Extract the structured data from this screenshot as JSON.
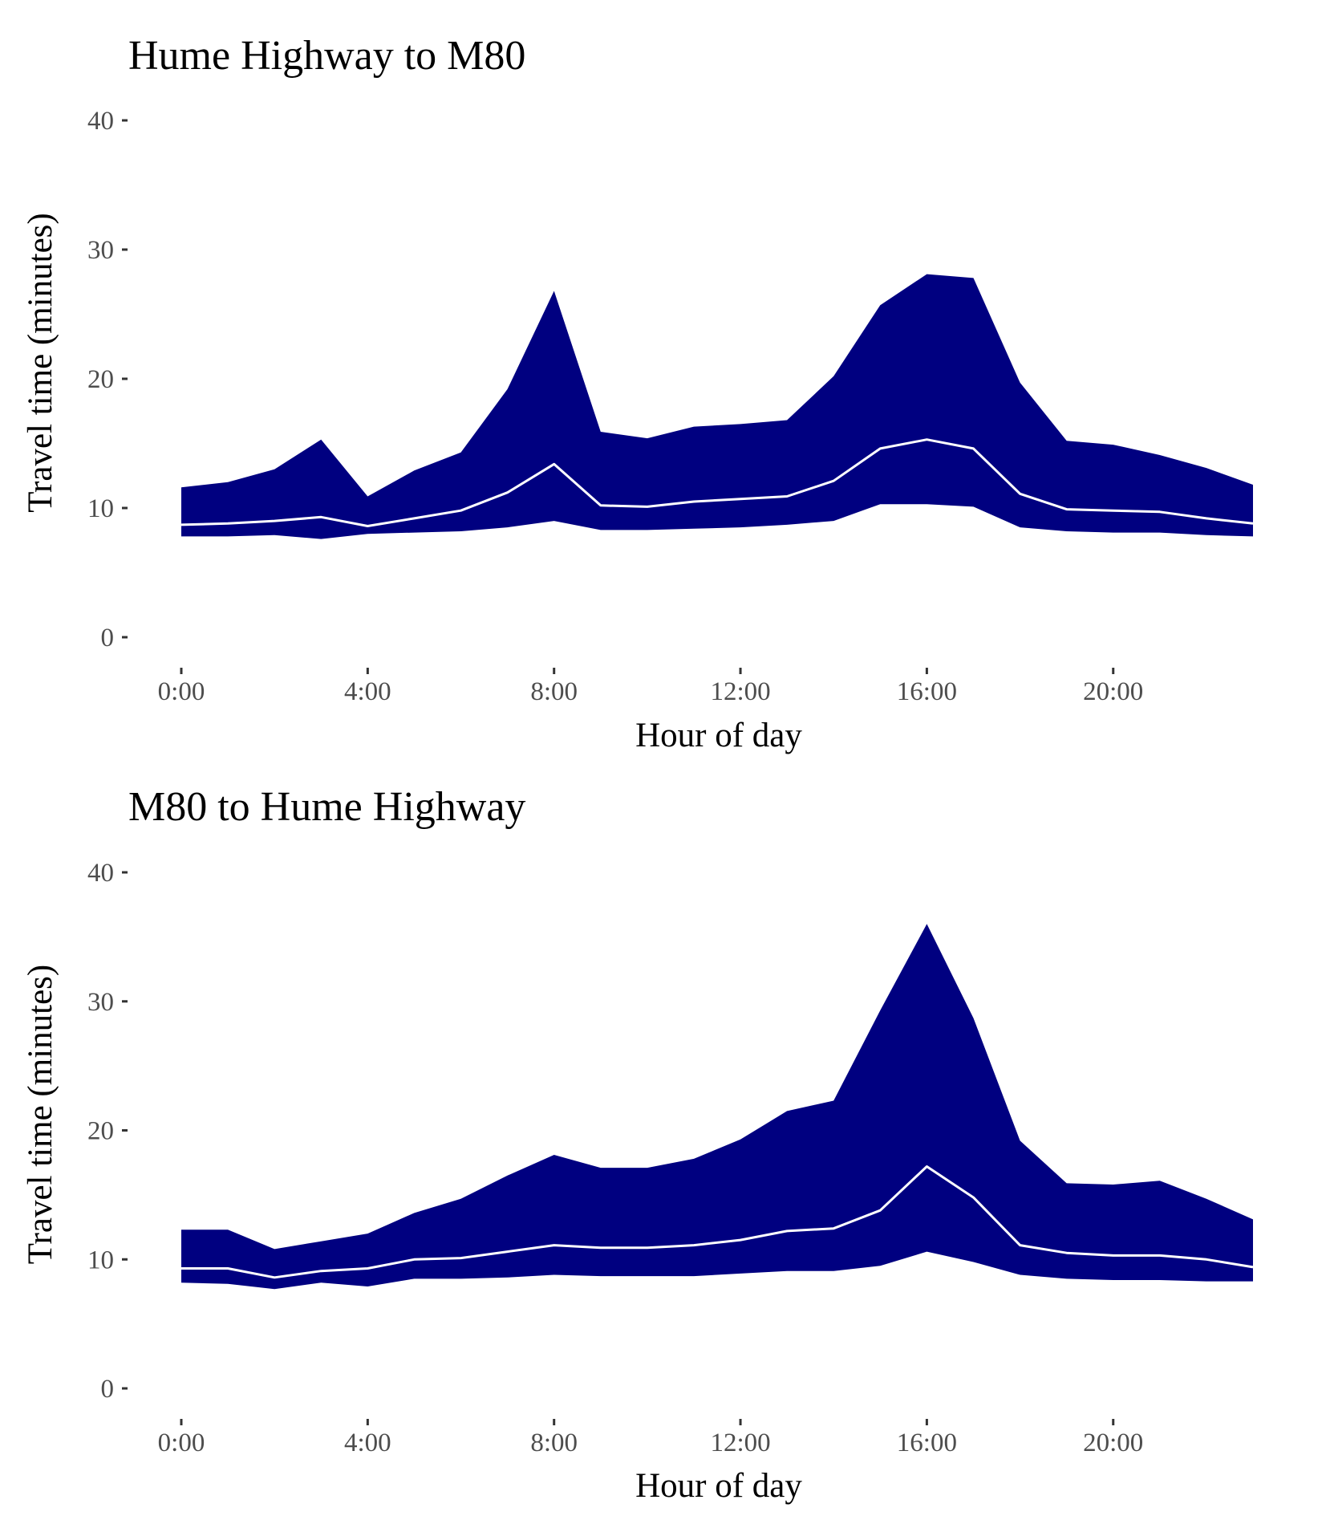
{
  "chart_data": [
    {
      "type": "area",
      "title": "Hume Highway to M80",
      "xlabel": "Hour of day",
      "ylabel": "Travel time (minutes)",
      "ylim": [
        0,
        40
      ],
      "xlim": [
        0,
        23
      ],
      "y_ticks": [
        0,
        10,
        20,
        30,
        40
      ],
      "x_ticks": [
        0,
        4,
        8,
        12,
        16,
        20
      ],
      "x_tick_labels": [
        "0:00",
        "4:00",
        "8:00",
        "12:00",
        "16:00",
        "20:00"
      ],
      "grid": false,
      "legend": "none",
      "band_color": "#000080",
      "line_color": "#ffffff",
      "x": [
        0,
        1,
        2,
        3,
        4,
        5,
        6,
        7,
        8,
        9,
        10,
        11,
        12,
        13,
        14,
        15,
        16,
        17,
        18,
        19,
        20,
        21,
        22,
        23
      ],
      "lower": [
        7.8,
        7.8,
        7.9,
        7.6,
        8.0,
        8.1,
        8.2,
        8.5,
        9.0,
        8.3,
        8.3,
        8.4,
        8.5,
        8.7,
        9.0,
        10.3,
        10.3,
        10.1,
        8.5,
        8.2,
        8.1,
        8.1,
        7.9,
        7.8
      ],
      "median": [
        8.7,
        8.8,
        9.0,
        9.3,
        8.6,
        9.2,
        9.8,
        11.2,
        13.4,
        10.2,
        10.1,
        10.5,
        10.7,
        10.9,
        12.1,
        14.6,
        15.3,
        14.6,
        11.1,
        9.9,
        9.8,
        9.7,
        9.2,
        8.8
      ],
      "upper": [
        11.6,
        12.0,
        13.0,
        15.3,
        10.9,
        12.9,
        14.3,
        19.2,
        26.8,
        15.9,
        15.4,
        16.3,
        16.5,
        16.8,
        20.2,
        25.7,
        28.1,
        27.8,
        19.7,
        15.2,
        14.9,
        14.1,
        13.1,
        11.8
      ]
    },
    {
      "type": "area",
      "title": "M80 to Hume Highway",
      "xlabel": "Hour of day",
      "ylabel": "Travel time (minutes)",
      "ylim": [
        0,
        40
      ],
      "xlim": [
        0,
        23
      ],
      "y_ticks": [
        0,
        10,
        20,
        30,
        40
      ],
      "x_ticks": [
        0,
        4,
        8,
        12,
        16,
        20
      ],
      "x_tick_labels": [
        "0:00",
        "4:00",
        "8:00",
        "12:00",
        "16:00",
        "20:00"
      ],
      "grid": false,
      "legend": "none",
      "band_color": "#000080",
      "line_color": "#ffffff",
      "x": [
        0,
        1,
        2,
        3,
        4,
        5,
        6,
        7,
        8,
        9,
        10,
        11,
        12,
        13,
        14,
        15,
        16,
        17,
        18,
        19,
        20,
        21,
        22,
        23
      ],
      "lower": [
        8.2,
        8.1,
        7.7,
        8.2,
        7.9,
        8.5,
        8.5,
        8.6,
        8.8,
        8.7,
        8.7,
        8.7,
        8.9,
        9.1,
        9.1,
        9.5,
        10.6,
        9.8,
        8.8,
        8.5,
        8.4,
        8.4,
        8.3,
        8.3
      ],
      "median": [
        9.3,
        9.3,
        8.6,
        9.1,
        9.3,
        10.0,
        10.1,
        10.6,
        11.1,
        10.9,
        10.9,
        11.1,
        11.5,
        12.2,
        12.4,
        13.8,
        17.2,
        14.8,
        11.1,
        10.5,
        10.3,
        10.3,
        10.0,
        9.4
      ],
      "upper": [
        12.3,
        12.3,
        10.8,
        11.4,
        12.0,
        13.6,
        14.7,
        16.5,
        18.1,
        17.1,
        17.1,
        17.8,
        19.3,
        21.5,
        22.3,
        29.3,
        36.0,
        28.7,
        19.2,
        15.9,
        15.8,
        16.1,
        14.7,
        13.1
      ]
    }
  ]
}
